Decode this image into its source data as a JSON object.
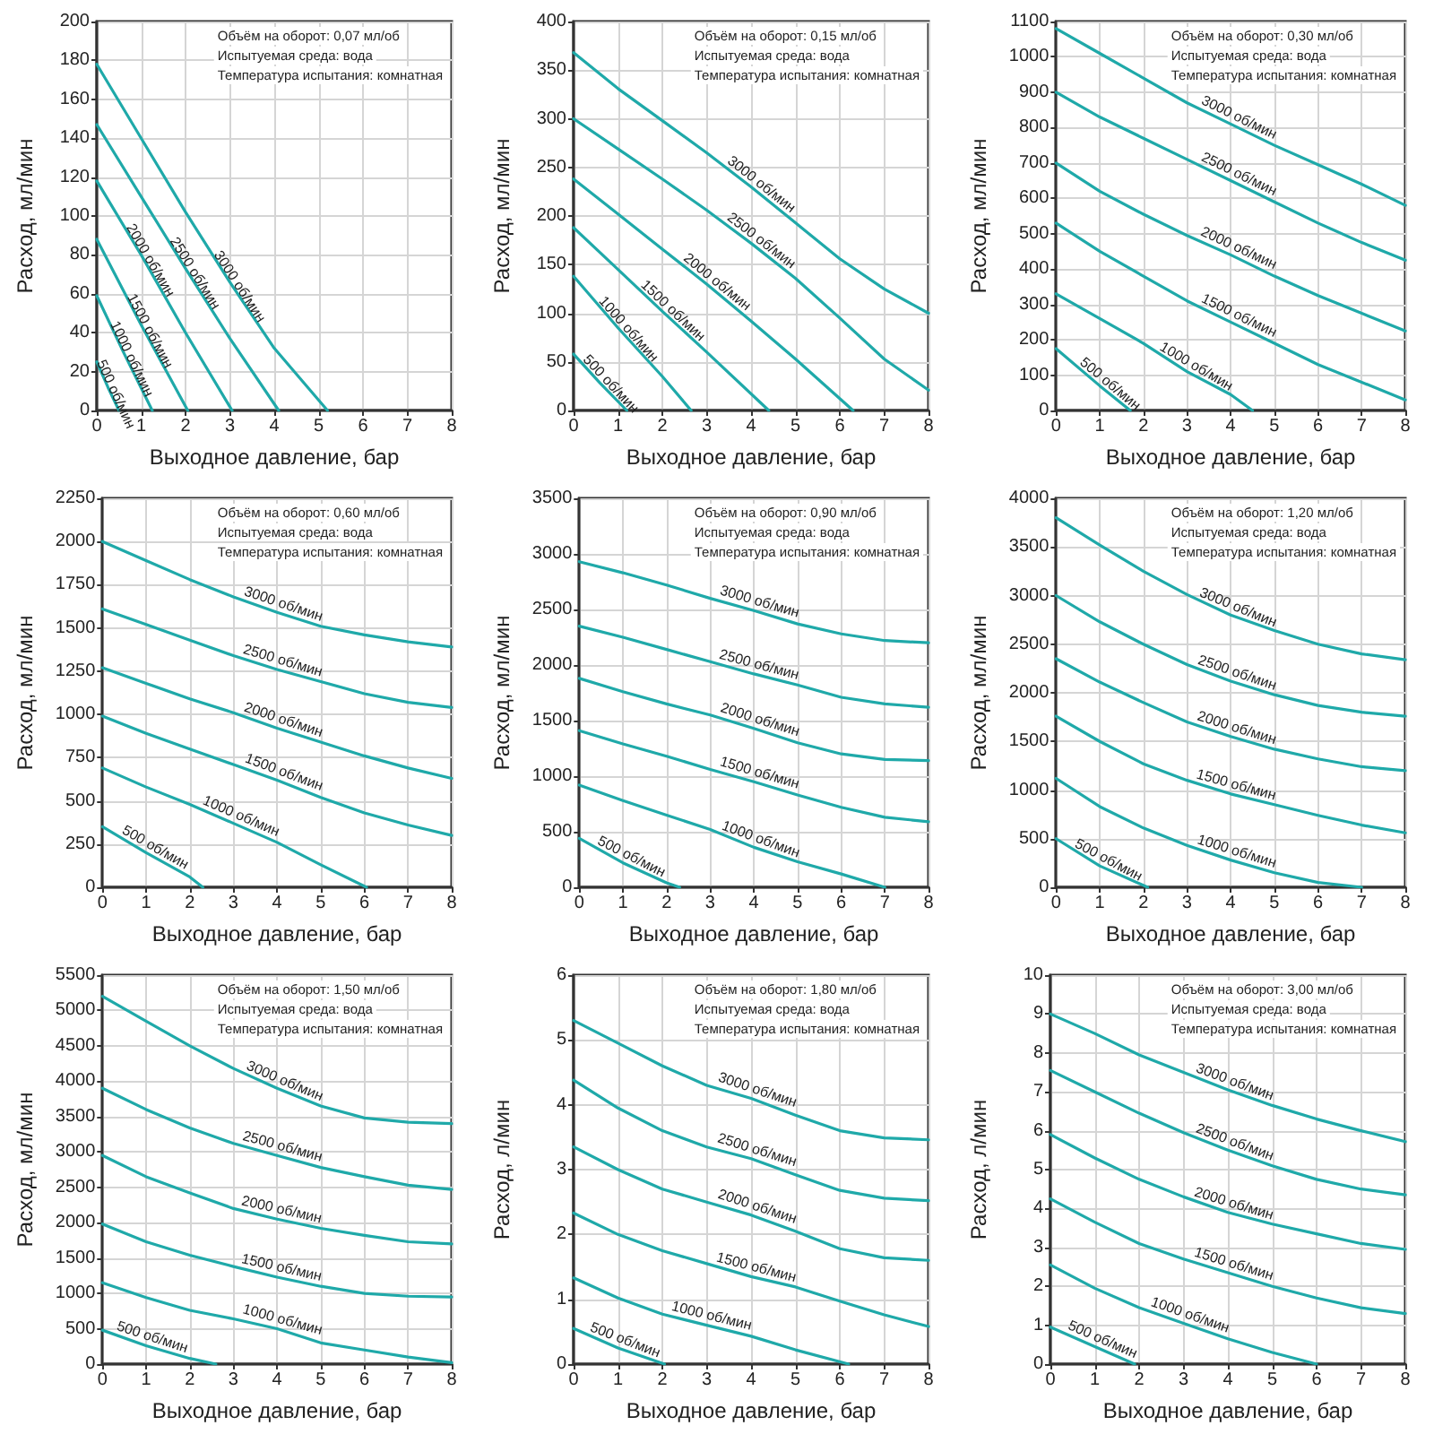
{
  "chart_data": [
    {
      "type": "line",
      "xlabel": "Выходное давление, бар",
      "ylabel": "Расход, мл/мин",
      "annotations": [
        "Объём на оборот: 0,07 мл/об",
        "Испытуемая среда: вода",
        "Температура испытания: комнатная"
      ],
      "xlim": [
        0,
        8
      ],
      "xticks": [
        0,
        1,
        2,
        3,
        4,
        5,
        6,
        7,
        8
      ],
      "ylim": [
        0,
        200
      ],
      "yticks": [
        0,
        20,
        40,
        60,
        80,
        100,
        120,
        140,
        160,
        180,
        200
      ],
      "grid": true,
      "marker": "none",
      "series": [
        {
          "name": "3000 об/мин",
          "color": "#1fa9a9",
          "x": [
            0,
            1,
            2,
            3,
            4,
            5.2
          ],
          "values": [
            178,
            140,
            102,
            66,
            32,
            0
          ]
        },
        {
          "name": "2500 об/мин",
          "color": "#1fa9a9",
          "x": [
            0,
            1,
            2,
            3,
            4.1
          ],
          "values": [
            147,
            110,
            73,
            37,
            0
          ]
        },
        {
          "name": "2000 об/мин",
          "color": "#1fa9a9",
          "x": [
            0,
            1,
            2,
            3.05
          ],
          "values": [
            118,
            80,
            40,
            0
          ]
        },
        {
          "name": "1500 об/мин",
          "color": "#1fa9a9",
          "x": [
            0,
            1,
            2.05
          ],
          "values": [
            88,
            44,
            0
          ]
        },
        {
          "name": "1000 об/мин",
          "color": "#1fa9a9",
          "x": [
            0,
            0.6,
            1.25
          ],
          "values": [
            59,
            30,
            0
          ]
        },
        {
          "name": "500 об/мин",
          "color": "#1fa9a9",
          "x": [
            0,
            0.25,
            0.5
          ],
          "values": [
            25,
            12,
            0
          ]
        }
      ]
    },
    {
      "type": "line",
      "xlabel": "Выходное давление, бар",
      "ylabel": "Расход, мл/мин",
      "annotations": [
        "Объём на оборот: 0,15 мл/об",
        "Испытуемая среда: вода",
        "Температура испытания: комнатная"
      ],
      "xlim": [
        0,
        8
      ],
      "xticks": [
        0,
        1,
        2,
        3,
        4,
        5,
        6,
        7,
        8
      ],
      "ylim": [
        0,
        400
      ],
      "yticks": [
        0,
        50,
        100,
        150,
        200,
        250,
        300,
        350,
        400
      ],
      "grid": true,
      "marker": "none",
      "series": [
        {
          "name": "3000 об/мин",
          "color": "#1fa9a9",
          "x": [
            0,
            1,
            2,
            3,
            4,
            5,
            6,
            7,
            8
          ],
          "values": [
            368,
            331,
            298,
            265,
            230,
            193,
            156,
            125,
            100
          ]
        },
        {
          "name": "2500 об/мин",
          "color": "#1fa9a9",
          "x": [
            0,
            1,
            2,
            3,
            4,
            5,
            6,
            7,
            8
          ],
          "values": [
            300,
            269,
            238,
            206,
            172,
            136,
            95,
            53,
            21
          ]
        },
        {
          "name": "2000 об/мин",
          "color": "#1fa9a9",
          "x": [
            0,
            1,
            2,
            3,
            4,
            5,
            6.3
          ],
          "values": [
            238,
            202,
            166,
            130,
            92,
            53,
            0
          ]
        },
        {
          "name": "1500 об/мин",
          "color": "#1fa9a9",
          "x": [
            0,
            1,
            2,
            3,
            4.4
          ],
          "values": [
            188,
            145,
            102,
            60,
            0
          ]
        },
        {
          "name": "1000 об/мин",
          "color": "#1fa9a9",
          "x": [
            0,
            1,
            2,
            2.65
          ],
          "values": [
            138,
            85,
            35,
            0
          ]
        },
        {
          "name": "500 об/мин",
          "color": "#1fa9a9",
          "x": [
            0,
            0.6,
            1.2
          ],
          "values": [
            58,
            28,
            0
          ]
        }
      ]
    },
    {
      "type": "line",
      "xlabel": "Выходное давление, бар",
      "ylabel": "Расход, мл/мин",
      "annotations": [
        "Объём на оборот: 0,30 мл/об",
        "Испытуемая среда: вода",
        "Температура испытания: комнатная"
      ],
      "xlim": [
        0,
        8
      ],
      "xticks": [
        0,
        1,
        2,
        3,
        4,
        5,
        6,
        7,
        8
      ],
      "ylim": [
        0,
        1100
      ],
      "yticks": [
        0,
        100,
        200,
        300,
        400,
        500,
        600,
        700,
        800,
        900,
        1000,
        1100
      ],
      "grid": true,
      "marker": "none",
      "series": [
        {
          "name": "3000 об/мин",
          "color": "#1fa9a9",
          "x": [
            0,
            1,
            2,
            3,
            4,
            5,
            6,
            7,
            8
          ],
          "values": [
            1080,
            1010,
            940,
            870,
            810,
            750,
            695,
            640,
            580
          ]
        },
        {
          "name": "2500 об/мин",
          "color": "#1fa9a9",
          "x": [
            0,
            1,
            2,
            3,
            4,
            5,
            6,
            7,
            8
          ],
          "values": [
            900,
            830,
            770,
            710,
            650,
            590,
            530,
            475,
            425
          ]
        },
        {
          "name": "2000 об/мин",
          "color": "#1fa9a9",
          "x": [
            0,
            1,
            2,
            3,
            4,
            5,
            6,
            7,
            8
          ],
          "values": [
            700,
            620,
            555,
            495,
            440,
            380,
            325,
            275,
            225
          ]
        },
        {
          "name": "1500 об/мин",
          "color": "#1fa9a9",
          "x": [
            0,
            1,
            2,
            3,
            4,
            5,
            6,
            7,
            8
          ],
          "values": [
            530,
            450,
            380,
            310,
            250,
            190,
            130,
            80,
            30
          ]
        },
        {
          "name": "1000 об/мин",
          "color": "#1fa9a9",
          "x": [
            0,
            1,
            2,
            3,
            4,
            4.5
          ],
          "values": [
            330,
            260,
            190,
            110,
            45,
            0
          ]
        },
        {
          "name": "500 об/мин",
          "color": "#1fa9a9",
          "x": [
            0,
            1,
            1.7
          ],
          "values": [
            175,
            70,
            0
          ]
        }
      ]
    },
    {
      "type": "line",
      "xlabel": "Выходное давление, бар",
      "ylabel": "Расход, мл/мин",
      "annotations": [
        "Объём на оборот: 0,60 мл/об",
        "Испытуемая среда: вода",
        "Температура испытания: комнатная"
      ],
      "xlim": [
        0,
        8
      ],
      "xticks": [
        0,
        1,
        2,
        3,
        4,
        5,
        6,
        7,
        8
      ],
      "ylim": [
        0,
        2250
      ],
      "yticks": [
        0,
        250,
        500,
        750,
        1000,
        1250,
        1500,
        1750,
        2000,
        2250
      ],
      "grid": true,
      "marker": "none",
      "series": [
        {
          "name": "3000 об/мин",
          "color": "#1fa9a9",
          "x": [
            0,
            1,
            2,
            3,
            4,
            5,
            6,
            7,
            8
          ],
          "values": [
            2000,
            1890,
            1780,
            1680,
            1590,
            1510,
            1460,
            1420,
            1390
          ]
        },
        {
          "name": "2500 об/мин",
          "color": "#1fa9a9",
          "x": [
            0,
            1,
            2,
            3,
            4,
            5,
            6,
            7,
            8
          ],
          "values": [
            1610,
            1520,
            1430,
            1340,
            1260,
            1190,
            1120,
            1070,
            1040
          ]
        },
        {
          "name": "2000 об/мин",
          "color": "#1fa9a9",
          "x": [
            0,
            1,
            2,
            3,
            4,
            5,
            6,
            7,
            8
          ],
          "values": [
            1270,
            1180,
            1090,
            1010,
            920,
            840,
            760,
            690,
            630
          ]
        },
        {
          "name": "1500 об/мин",
          "color": "#1fa9a9",
          "x": [
            0,
            1,
            2,
            3,
            4,
            5,
            6,
            7,
            8
          ],
          "values": [
            990,
            890,
            800,
            710,
            620,
            520,
            430,
            360,
            300
          ]
        },
        {
          "name": "1000 об/мин",
          "color": "#1fa9a9",
          "x": [
            0,
            1,
            2,
            3,
            4,
            5,
            6.05
          ],
          "values": [
            690,
            580,
            480,
            370,
            260,
            130,
            0
          ]
        },
        {
          "name": "500 об/мин",
          "color": "#1fa9a9",
          "x": [
            0,
            1,
            2,
            2.3
          ],
          "values": [
            350,
            200,
            60,
            0
          ]
        }
      ]
    },
    {
      "type": "line",
      "xlabel": "Выходное давление, бар",
      "ylabel": "Расход, мл/мин",
      "annotations": [
        "Объём на оборот: 0,90 мл/об",
        "Испытуемая среда: вода",
        "Температура испытания: комнатная"
      ],
      "xlim": [
        0,
        8
      ],
      "xticks": [
        0,
        1,
        2,
        3,
        4,
        5,
        6,
        7,
        8
      ],
      "ylim": [
        0,
        3500
      ],
      "yticks": [
        0,
        500,
        1000,
        1500,
        2000,
        2500,
        3000,
        3500
      ],
      "grid": true,
      "marker": "none",
      "series": [
        {
          "name": "3000 об/мин",
          "color": "#1fa9a9",
          "x": [
            0,
            1,
            2,
            3,
            4,
            5,
            6,
            7,
            8
          ],
          "values": [
            2930,
            2830,
            2720,
            2600,
            2490,
            2370,
            2280,
            2220,
            2200
          ]
        },
        {
          "name": "2500 об/мин",
          "color": "#1fa9a9",
          "x": [
            0,
            1,
            2,
            3,
            4,
            5,
            6,
            7,
            8
          ],
          "values": [
            2350,
            2250,
            2140,
            2030,
            1920,
            1820,
            1710,
            1650,
            1620
          ]
        },
        {
          "name": "2000 об/мин",
          "color": "#1fa9a9",
          "x": [
            0,
            1,
            2,
            3,
            4,
            5,
            6,
            7,
            8
          ],
          "values": [
            1880,
            1760,
            1650,
            1550,
            1430,
            1300,
            1200,
            1150,
            1140
          ]
        },
        {
          "name": "1500 об/мин",
          "color": "#1fa9a9",
          "x": [
            0,
            1,
            2,
            3,
            4,
            5,
            6,
            7,
            8
          ],
          "values": [
            1410,
            1290,
            1180,
            1060,
            950,
            830,
            720,
            630,
            590
          ]
        },
        {
          "name": "1000 об/мин",
          "color": "#1fa9a9",
          "x": [
            0,
            1,
            2,
            3,
            4,
            5,
            6,
            7
          ],
          "values": [
            920,
            780,
            650,
            520,
            360,
            230,
            120,
            0
          ]
        },
        {
          "name": "500 об/мин",
          "color": "#1fa9a9",
          "x": [
            0,
            1,
            2,
            2.3
          ],
          "values": [
            440,
            220,
            40,
            0
          ]
        }
      ]
    },
    {
      "type": "line",
      "xlabel": "Выходное давление, бар",
      "ylabel": "Расход, мл/мин",
      "annotations": [
        "Объём на оборот: 1,20 мл/об",
        "Испытуемая среда: вода",
        "Температура испытания: комнатная"
      ],
      "xlim": [
        0,
        8
      ],
      "xticks": [
        0,
        1,
        2,
        3,
        4,
        5,
        6,
        7,
        8
      ],
      "ylim": [
        0,
        4000
      ],
      "yticks": [
        0,
        500,
        1000,
        1500,
        2000,
        2500,
        3000,
        3500,
        4000
      ],
      "grid": true,
      "marker": "none",
      "series": [
        {
          "name": "3000 об/мин",
          "color": "#1fa9a9",
          "x": [
            0,
            1,
            2,
            3,
            4,
            5,
            6,
            7,
            8
          ],
          "values": [
            3800,
            3520,
            3250,
            3010,
            2800,
            2640,
            2500,
            2400,
            2340
          ]
        },
        {
          "name": "2500 об/мин",
          "color": "#1fa9a9",
          "x": [
            0,
            1,
            2,
            3,
            4,
            5,
            6,
            7,
            8
          ],
          "values": [
            3000,
            2730,
            2500,
            2290,
            2120,
            1980,
            1870,
            1800,
            1760
          ]
        },
        {
          "name": "2000 об/мин",
          "color": "#1fa9a9",
          "x": [
            0,
            1,
            2,
            3,
            4,
            5,
            6,
            7,
            8
          ],
          "values": [
            2350,
            2110,
            1900,
            1700,
            1550,
            1420,
            1320,
            1240,
            1200
          ]
        },
        {
          "name": "1500 об/мин",
          "color": "#1fa9a9",
          "x": [
            0,
            1,
            2,
            3,
            4,
            5,
            6,
            7,
            8
          ],
          "values": [
            1760,
            1500,
            1270,
            1100,
            960,
            850,
            740,
            640,
            560
          ]
        },
        {
          "name": "1000 об/мин",
          "color": "#1fa9a9",
          "x": [
            0,
            1,
            2,
            3,
            4,
            5,
            6,
            7
          ],
          "values": [
            1120,
            830,
            610,
            430,
            280,
            150,
            50,
            0
          ]
        },
        {
          "name": "500 об/мин",
          "color": "#1fa9a9",
          "x": [
            0,
            1,
            2.1
          ],
          "values": [
            500,
            220,
            0
          ]
        }
      ]
    },
    {
      "type": "line",
      "xlabel": "Выходное давление, бар",
      "ylabel": "Расход, мл/мин",
      "annotations": [
        "Объём на оборот: 1,50 мл/об",
        "Испытуемая среда: вода",
        "Температура испытания: комнатная"
      ],
      "xlim": [
        0,
        8
      ],
      "xticks": [
        0,
        1,
        2,
        3,
        4,
        5,
        6,
        7,
        8
      ],
      "ylim": [
        0,
        5500
      ],
      "yticks": [
        0,
        500,
        1000,
        1500,
        2000,
        2500,
        3000,
        3500,
        4000,
        4500,
        5000,
        5500
      ],
      "grid": true,
      "marker": "none",
      "series": [
        {
          "name": "3000 об/мин",
          "color": "#1fa9a9",
          "x": [
            0,
            1,
            2,
            3,
            4,
            5,
            6,
            7,
            8
          ],
          "values": [
            5200,
            4850,
            4500,
            4180,
            3900,
            3650,
            3480,
            3420,
            3400
          ]
        },
        {
          "name": "2500 об/мин",
          "color": "#1fa9a9",
          "x": [
            0,
            1,
            2,
            3,
            4,
            5,
            6,
            7,
            8
          ],
          "values": [
            3900,
            3600,
            3340,
            3120,
            2950,
            2780,
            2650,
            2530,
            2470
          ]
        },
        {
          "name": "2000 об/мин",
          "color": "#1fa9a9",
          "x": [
            0,
            1,
            2,
            3,
            4,
            5,
            6,
            7,
            8
          ],
          "values": [
            2950,
            2650,
            2420,
            2200,
            2050,
            1920,
            1820,
            1730,
            1700
          ]
        },
        {
          "name": "1500 об/мин",
          "color": "#1fa9a9",
          "x": [
            0,
            1,
            2,
            3,
            4,
            5,
            6,
            7,
            8
          ],
          "values": [
            1980,
            1730,
            1540,
            1380,
            1230,
            1100,
            1000,
            960,
            950
          ]
        },
        {
          "name": "1000 об/мин",
          "color": "#1fa9a9",
          "x": [
            0,
            1,
            2,
            3,
            4,
            5,
            6,
            7,
            8
          ],
          "values": [
            1150,
            940,
            760,
            640,
            500,
            300,
            200,
            100,
            20
          ]
        },
        {
          "name": "500 об/мин",
          "color": "#1fa9a9",
          "x": [
            0,
            1,
            2,
            2.6
          ],
          "values": [
            480,
            260,
            80,
            0
          ]
        }
      ]
    },
    {
      "type": "line",
      "xlabel": "Выходное давление, бар",
      "ylabel": "Расход, л/мин",
      "annotations": [
        "Объём на оборот: 1,80 мл/об",
        "Испытуемая среда: вода",
        "Температура испытания: комнатная"
      ],
      "xlim": [
        0,
        8
      ],
      "xticks": [
        0,
        1,
        2,
        3,
        4,
        5,
        6,
        7,
        8
      ],
      "ylim": [
        0,
        6
      ],
      "yticks": [
        0,
        1,
        2,
        3,
        4,
        5,
        6
      ],
      "grid": true,
      "marker": "none",
      "series": [
        {
          "name": "3000 об/мин",
          "color": "#1fa9a9",
          "x": [
            0,
            1,
            2,
            3,
            4,
            5,
            6,
            7,
            8
          ],
          "values": [
            5.3,
            4.95,
            4.6,
            4.3,
            4.1,
            3.84,
            3.6,
            3.49,
            3.46
          ]
        },
        {
          "name": "2500 об/мин",
          "color": "#1fa9a9",
          "x": [
            0,
            1,
            2,
            3,
            4,
            5,
            6,
            7,
            8
          ],
          "values": [
            4.38,
            3.95,
            3.6,
            3.35,
            3.17,
            2.92,
            2.68,
            2.56,
            2.52
          ]
        },
        {
          "name": "2000 об/мин",
          "color": "#1fa9a9",
          "x": [
            0,
            1,
            2,
            3,
            4,
            5,
            6,
            7,
            8
          ],
          "values": [
            3.35,
            3.0,
            2.7,
            2.5,
            2.3,
            2.05,
            1.78,
            1.64,
            1.6
          ]
        },
        {
          "name": "1500 об/мин",
          "color": "#1fa9a9",
          "x": [
            0,
            1,
            2,
            3,
            4,
            5,
            6,
            7,
            8
          ],
          "values": [
            2.33,
            2.0,
            1.75,
            1.55,
            1.35,
            1.19,
            0.97,
            0.76,
            0.58
          ]
        },
        {
          "name": "1000 об/мин",
          "color": "#1fa9a9",
          "x": [
            0,
            1,
            2,
            3,
            4,
            5,
            6.2
          ],
          "values": [
            1.33,
            1.02,
            0.77,
            0.6,
            0.43,
            0.22,
            0
          ]
        },
        {
          "name": "500 об/мин",
          "color": "#1fa9a9",
          "x": [
            0,
            1,
            2.05
          ],
          "values": [
            0.55,
            0.25,
            0
          ]
        }
      ]
    },
    {
      "type": "line",
      "xlabel": "Выходное давление, бар",
      "ylabel": "Расход, л/мин",
      "annotations": [
        "Объём на оборот: 3,00 мл/об",
        "Испытуемая среда: вода",
        "Температура испытания: комнатная"
      ],
      "xlim": [
        0,
        8
      ],
      "xticks": [
        0,
        1,
        2,
        3,
        4,
        5,
        6,
        7,
        8
      ],
      "ylim": [
        0,
        10
      ],
      "yticks": [
        0,
        1,
        2,
        3,
        4,
        5,
        6,
        7,
        8,
        9,
        10
      ],
      "grid": true,
      "marker": "none",
      "series": [
        {
          "name": "3000 об/мин",
          "color": "#1fa9a9",
          "x": [
            0,
            1,
            2,
            3,
            4,
            5,
            6,
            7,
            8
          ],
          "values": [
            9.0,
            8.5,
            7.95,
            7.5,
            7.05,
            6.65,
            6.3,
            6.0,
            5.72
          ]
        },
        {
          "name": "2500 об/мин",
          "color": "#1fa9a9",
          "x": [
            0,
            1,
            2,
            3,
            4,
            5,
            6,
            7,
            8
          ],
          "values": [
            7.55,
            7.0,
            6.45,
            5.95,
            5.5,
            5.1,
            4.75,
            4.5,
            4.35
          ]
        },
        {
          "name": "2000 об/мин",
          "color": "#1fa9a9",
          "x": [
            0,
            1,
            2,
            3,
            4,
            5,
            6,
            7,
            8
          ],
          "values": [
            5.9,
            5.3,
            4.75,
            4.3,
            3.9,
            3.6,
            3.35,
            3.1,
            2.95
          ]
        },
        {
          "name": "1500 об/мин",
          "color": "#1fa9a9",
          "x": [
            0,
            1,
            2,
            3,
            4,
            5,
            6,
            7,
            8
          ],
          "values": [
            4.25,
            3.65,
            3.1,
            2.7,
            2.35,
            2.0,
            1.7,
            1.45,
            1.3
          ]
        },
        {
          "name": "1000 об/мин",
          "color": "#1fa9a9",
          "x": [
            0,
            1,
            2,
            3,
            4,
            5,
            6
          ],
          "values": [
            2.55,
            1.95,
            1.45,
            1.05,
            0.65,
            0.3,
            0
          ]
        },
        {
          "name": "500 об/мин",
          "color": "#1fa9a9",
          "x": [
            0,
            1,
            1.9
          ],
          "values": [
            0.95,
            0.45,
            0
          ]
        }
      ]
    }
  ]
}
